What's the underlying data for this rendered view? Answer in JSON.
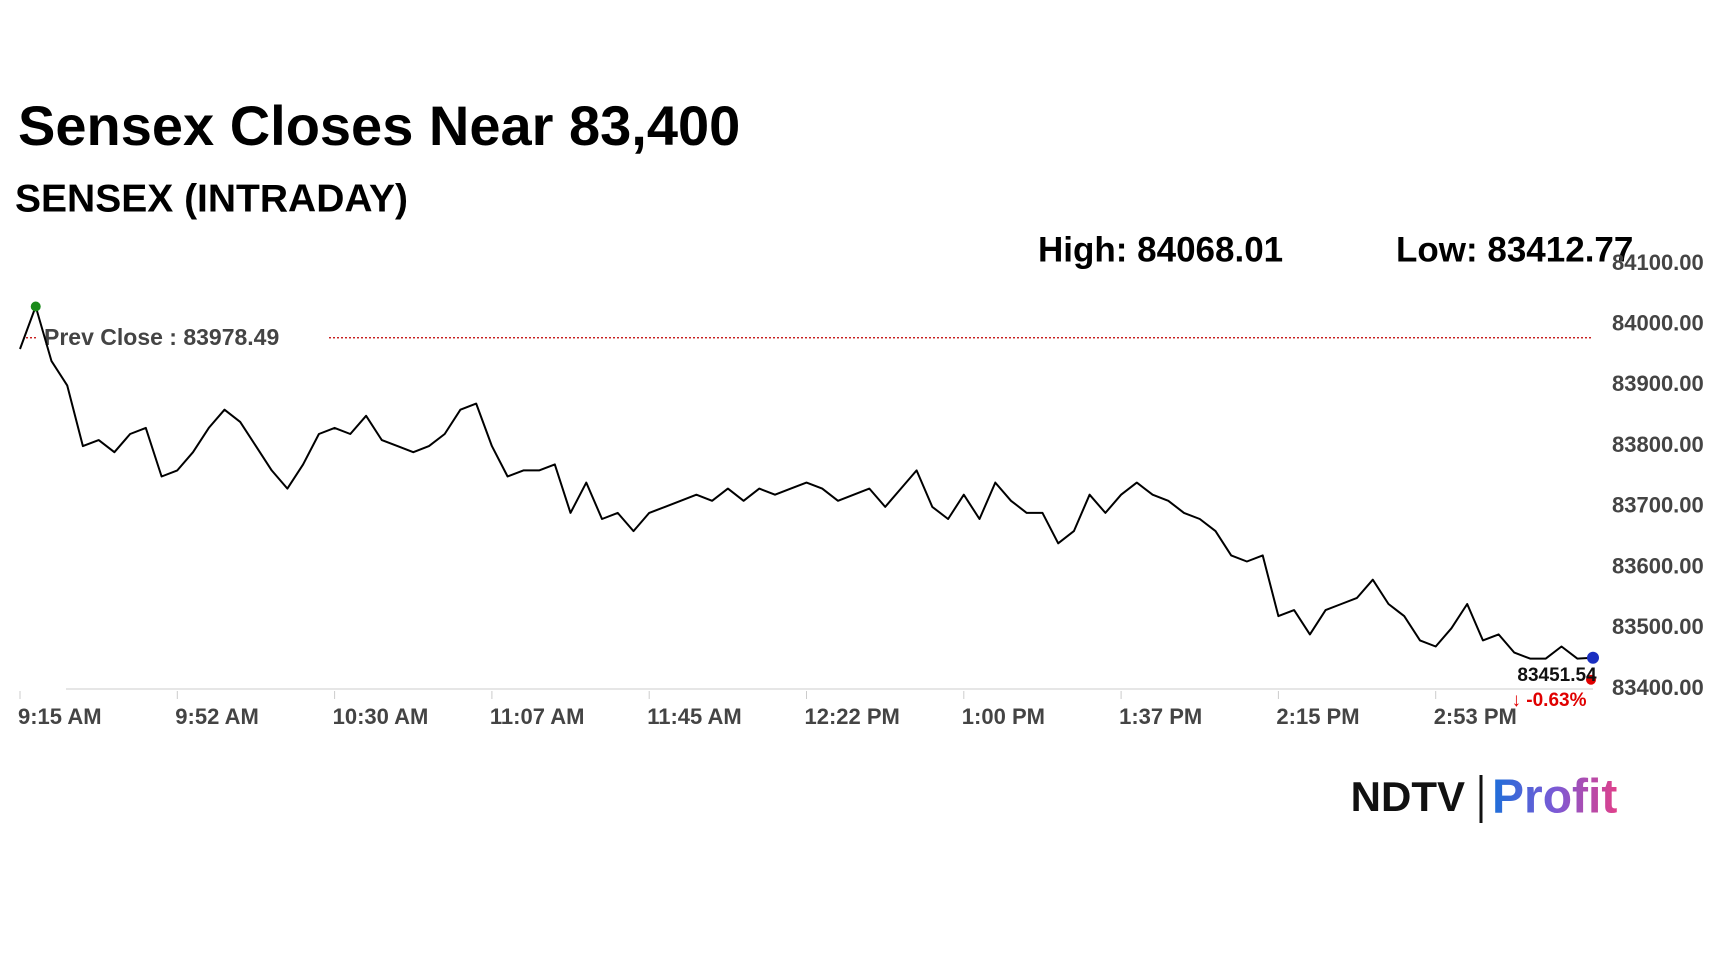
{
  "chart_data": {
    "type": "line",
    "title": "Sensex Closes Near 83,400",
    "subtitle": "SENSEX (INTRADAY)",
    "high_label": "High: 84068.01",
    "low_label": "Low: 83412.77",
    "categories": [
      "9:15 AM",
      null,
      null,
      null,
      null,
      null,
      null,
      null,
      null,
      null,
      "9:52 AM",
      null,
      null,
      null,
      null,
      null,
      null,
      null,
      null,
      null,
      "10:30 AM",
      null,
      null,
      null,
      null,
      null,
      null,
      null,
      null,
      null,
      "11:07 AM",
      null,
      null,
      null,
      null,
      null,
      null,
      null,
      null,
      null,
      "11:45 AM",
      null,
      null,
      null,
      null,
      null,
      null,
      null,
      null,
      null,
      "12:22 PM",
      null,
      null,
      null,
      null,
      null,
      null,
      null,
      null,
      null,
      "1:00 PM",
      null,
      null,
      null,
      null,
      null,
      null,
      null,
      null,
      null,
      "1:37 PM",
      null,
      null,
      null,
      null,
      null,
      null,
      null,
      null,
      null,
      "2:15 PM",
      null,
      null,
      null,
      null,
      null,
      null,
      null,
      null,
      null,
      "2:53 PM",
      null,
      null,
      null,
      null,
      null,
      null,
      null,
      null,
      null,
      null
    ],
    "values": [
      83960,
      84030,
      83940,
      83900,
      83800,
      83810,
      83790,
      83820,
      83830,
      83750,
      83760,
      83790,
      83830,
      83860,
      83840,
      83800,
      83760,
      83730,
      83770,
      83820,
      83830,
      83820,
      83850,
      83810,
      83800,
      83790,
      83800,
      83820,
      83860,
      83870,
      83800,
      83750,
      83760,
      83760,
      83770,
      83690,
      83740,
      83680,
      83690,
      83660,
      83690,
      83700,
      83710,
      83720,
      83710,
      83730,
      83710,
      83730,
      83720,
      83730,
      83740,
      83730,
      83710,
      83720,
      83730,
      83700,
      83730,
      83760,
      83700,
      83680,
      83720,
      83680,
      83740,
      83710,
      83690,
      83690,
      83640,
      83660,
      83720,
      83690,
      83720,
      83740,
      83720,
      83710,
      83690,
      83680,
      83660,
      83620,
      83610,
      83620,
      83520,
      83530,
      83490,
      83530,
      83540,
      83550,
      83580,
      83540,
      83520,
      83480,
      83470,
      83500,
      83540,
      83480,
      83490,
      83460,
      83450,
      83450,
      83470,
      83450,
      83451.54
    ],
    "color": "#000000",
    "ylim": [
      83400,
      84100
    ],
    "yticks": [
      {
        "value": 83400,
        "label": "83400.00"
      },
      {
        "value": 83500,
        "label": "83500.00"
      },
      {
        "value": 83600,
        "label": "83600.00"
      },
      {
        "value": 83700,
        "label": "83700.00"
      },
      {
        "value": 83800,
        "label": "83800.00"
      },
      {
        "value": 83900,
        "label": "83900.00"
      },
      {
        "value": 84000,
        "label": "84000.00"
      },
      {
        "value": 84100,
        "label": "84100.00"
      }
    ],
    "reference": {
      "value": 83978.49,
      "label": "Prev Close : 83978.49",
      "color": "#c00000"
    },
    "last_label": "83451.54",
    "change_label": "↓ -0.63%"
  },
  "logo": {
    "left": "NDTV",
    "right": "Profit"
  }
}
